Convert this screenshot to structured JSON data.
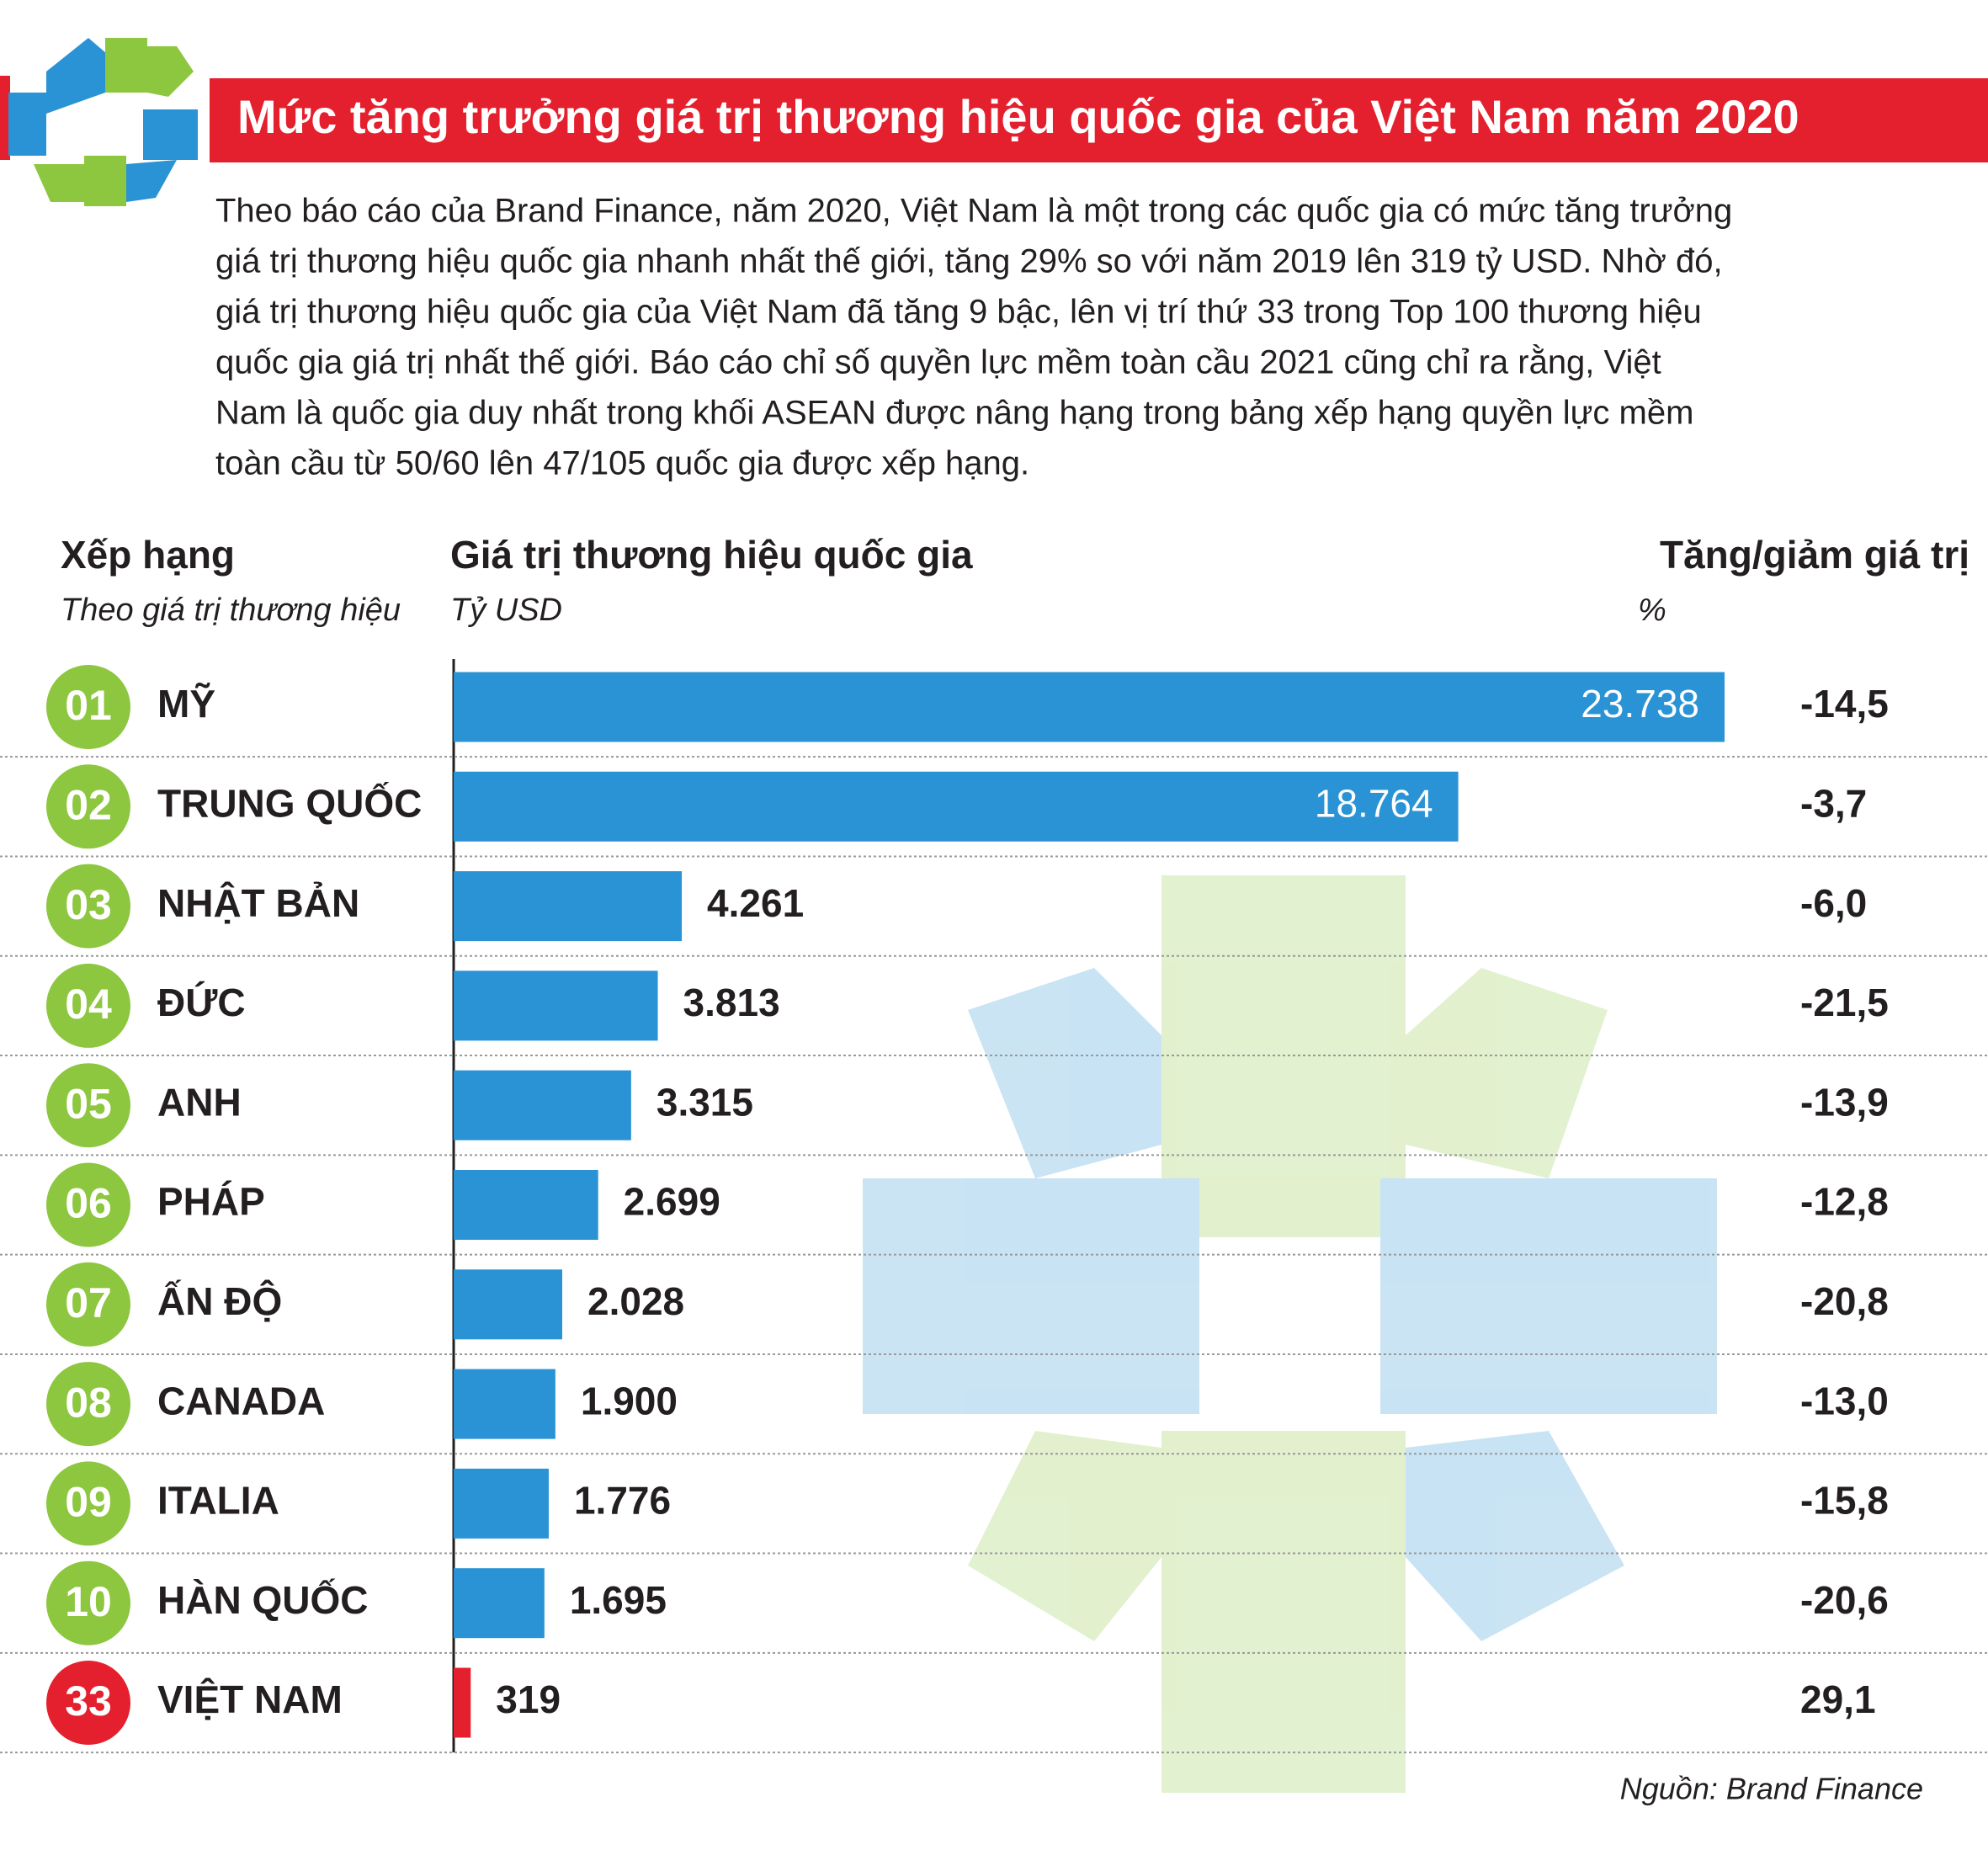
{
  "chart_data": {
    "type": "bar",
    "title": "Mức tăng trưởng giá trị thương hiệu quốc gia của Việt Nam năm 2020",
    "intro": [
      "Theo báo cáo của Brand Finance, năm 2020, Việt Nam là một trong các quốc gia có mức tăng trưởng",
      "giá trị thương hiệu quốc gia nhanh nhất thế giới, tăng 29% so với năm 2019 lên 319 tỷ USD. Nhờ đó,",
      "giá trị thương hiệu quốc gia của Việt Nam đã tăng 9 bậc, lên vị trí thứ 33 trong Top 100 thương hiệu",
      "quốc gia giá trị nhất thế giới. Báo cáo chỉ số quyền lực mềm toàn cầu 2021 cũng chỉ ra rằng, Việt",
      "Nam là quốc gia duy nhất trong khối ASEAN được nâng hạng trong bảng xếp hạng quyền lực mềm",
      "toàn cầu từ 50/60 lên 47/105 quốc gia được xếp hạng."
    ],
    "headers": {
      "rank": "Xếp hạng",
      "rank_sub": "Theo giá trị thương hiệu",
      "value": "Giá trị thương hiệu quốc gia",
      "value_sub": "Tỷ USD",
      "change": "Tăng/giảm giá trị",
      "change_sub": "%"
    },
    "ranks": [
      "01",
      "02",
      "03",
      "04",
      "05",
      "06",
      "07",
      "08",
      "09",
      "10",
      "33"
    ],
    "rank_colors": [
      "#8dc63f",
      "#8dc63f",
      "#8dc63f",
      "#8dc63f",
      "#8dc63f",
      "#8dc63f",
      "#8dc63f",
      "#8dc63f",
      "#8dc63f",
      "#8dc63f",
      "#e5202e"
    ],
    "categories": [
      "MỸ",
      "TRUNG QUỐC",
      "NHẬT BẢN",
      "ĐỨC",
      "ANH",
      "PHÁP",
      "ẤN ĐỘ",
      "CANADA",
      "ITALIA",
      "HÀN QUỐC",
      "VIỆT NAM"
    ],
    "values": [
      23738,
      18764,
      4261,
      3813,
      3315,
      2699,
      2028,
      1900,
      1776,
      1695,
      319
    ],
    "value_labels": [
      "23.738",
      "18.764",
      "4.261",
      "3.813",
      "3.315",
      "2.699",
      "2.028",
      "1.900",
      "1.776",
      "1.695",
      "319"
    ],
    "colors": [
      "#2a93d5",
      "#2a93d5",
      "#2a93d5",
      "#2a93d5",
      "#2a93d5",
      "#2a93d5",
      "#2a93d5",
      "#2a93d5",
      "#2a93d5",
      "#2a93d5",
      "#e5202e"
    ],
    "changes": [
      -14.5,
      -3.7,
      -6.0,
      -21.5,
      -13.9,
      -12.8,
      -20.8,
      -13.0,
      -15.8,
      -20.6,
      29.1
    ],
    "change_labels": [
      "-14,5",
      "-3,7",
      "-6,0",
      "-21,5",
      "-13,9",
      "-12,8",
      "-20,8",
      "-13,0",
      "-15,8",
      "-20,6",
      "29,1"
    ],
    "source": "Nguồn: Brand Finance"
  }
}
